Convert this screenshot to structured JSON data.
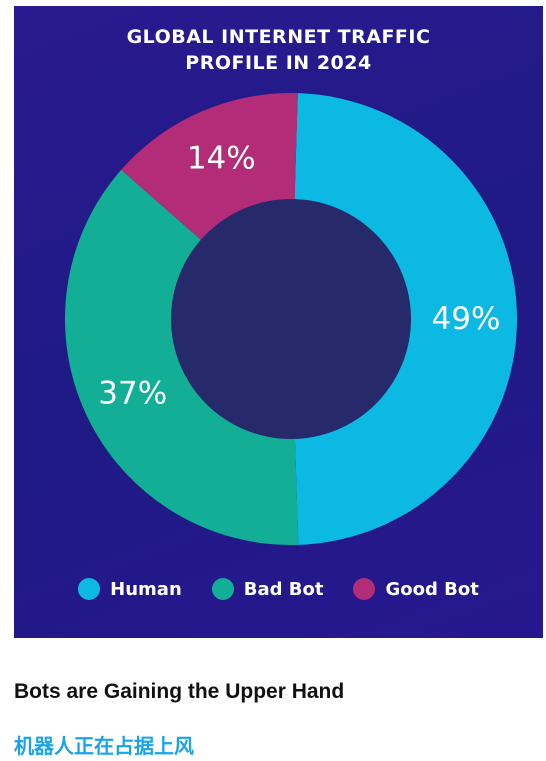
{
  "chart_data": {
    "type": "pie",
    "title": "GLOBAL INTERNET TRAFFIC\nPROFILE IN 2024",
    "categories": [
      "Human",
      "Bad Bot",
      "Good Bot"
    ],
    "values": [
      49,
      37,
      14
    ],
    "labels": [
      "49%",
      "37%",
      "14%"
    ],
    "colors": [
      "#0bb9e3",
      "#12ae95",
      "#b22c78"
    ],
    "center_color": "#26296a",
    "donut": true,
    "legend_position": "bottom"
  },
  "caption": {
    "title": "Bots are Gaining the Upper Hand",
    "subtitle": "机器人正在占据上风"
  }
}
